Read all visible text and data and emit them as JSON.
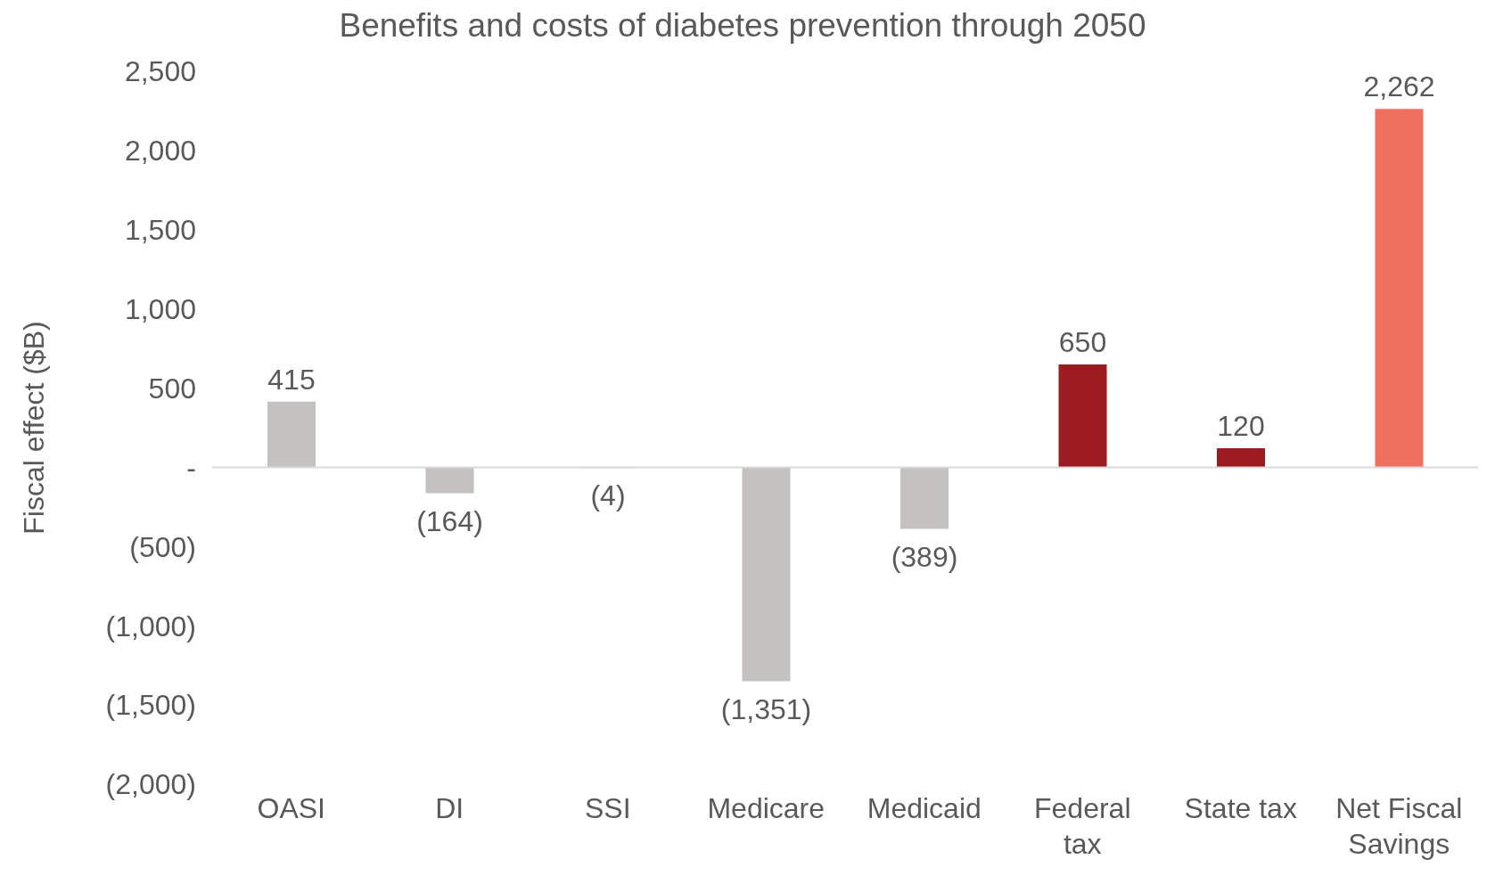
{
  "chart_data": {
    "type": "bar",
    "title": "Benefits and costs of diabetes prevention through 2050",
    "ylabel": "Fiscal effect ($B)",
    "categories": [
      "OASI",
      "DI",
      "SSI",
      "Medicare",
      "Medicaid",
      "Federal tax",
      "State tax",
      "Net Fiscal Savings"
    ],
    "values": [
      415,
      -164,
      -4,
      -1351,
      -389,
      650,
      120,
      2262
    ],
    "colors": [
      "#c3c2c1",
      "#c3c2c1",
      "#c3c2c1",
      "#c3c2c1",
      "#c3c2c1",
      "#9b1b20",
      "#9b1b20",
      "#f07060"
    ],
    "value_labels": [
      "415",
      "(164)",
      "(4)",
      "(1,351)",
      "(389)",
      "650",
      "120",
      "2,262"
    ],
    "ylim": [
      -2000,
      2500
    ],
    "yticks": [
      {
        "value": 2500,
        "label": "2,500"
      },
      {
        "value": 2000,
        "label": "2,000"
      },
      {
        "value": 1500,
        "label": "1,500"
      },
      {
        "value": 1000,
        "label": "1,000"
      },
      {
        "value": 500,
        "label": "500"
      },
      {
        "value": 0,
        "label": "-"
      },
      {
        "value": -500,
        "label": "(500)"
      },
      {
        "value": -1000,
        "label": "(1,000)"
      },
      {
        "value": -1500,
        "label": "(1,500)"
      },
      {
        "value": -2000,
        "label": "(2,000)"
      }
    ],
    "ref_lines": [
      {
        "axis": "y",
        "value": 0,
        "color": "#d9d9d9"
      }
    ],
    "legend": false
  }
}
